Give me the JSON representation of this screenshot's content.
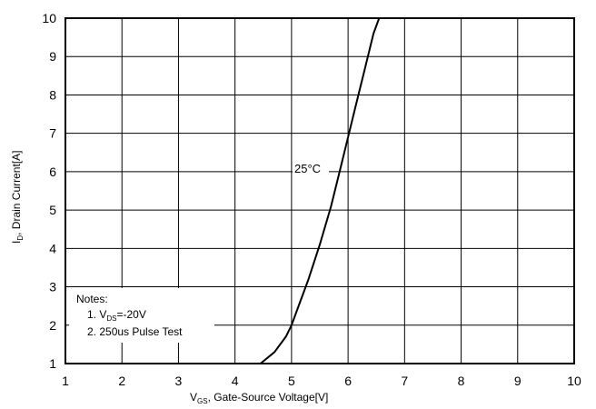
{
  "chart_data": {
    "type": "line",
    "xlabel": {
      "main": "V",
      "sub": "GS",
      "rest": ", Gate-Source Voltage[V]"
    },
    "ylabel": {
      "main": "I",
      "sub": "D",
      "rest": ", Drain Current[A]"
    },
    "xlim": [
      1,
      10
    ],
    "ylim": [
      1,
      10
    ],
    "xticks": [
      "1",
      "2",
      "3",
      "4",
      "5",
      "6",
      "7",
      "8",
      "9",
      "10"
    ],
    "yticks": [
      "1",
      "2",
      "3",
      "4",
      "5",
      "6",
      "7",
      "8",
      "9",
      "10"
    ],
    "grid": true,
    "series": [
      {
        "name": "25°C",
        "x": [
          4.45,
          4.7,
          4.9,
          5.0,
          5.1,
          5.3,
          5.5,
          5.7,
          5.85,
          6.0,
          6.15,
          6.3,
          6.45,
          6.55
        ],
        "y": [
          1.0,
          1.3,
          1.7,
          2.0,
          2.4,
          3.2,
          4.1,
          5.1,
          6.0,
          6.9,
          7.8,
          8.7,
          9.6,
          10.0
        ]
      }
    ],
    "annotations": {
      "curve_label": "25°C",
      "notes_title": "Notes:",
      "note1": {
        "prefix": "1. V",
        "sub": "DS",
        "rest": "=-20V"
      },
      "note2": "2. 250us Pulse Test"
    }
  }
}
